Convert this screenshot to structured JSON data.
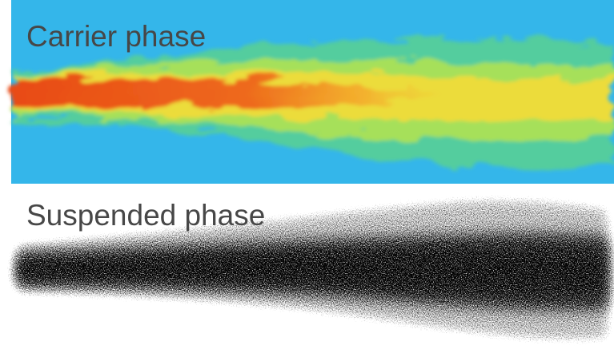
{
  "panels": [
    {
      "label": "Carrier phase"
    },
    {
      "label": "Suspended phase"
    }
  ]
}
